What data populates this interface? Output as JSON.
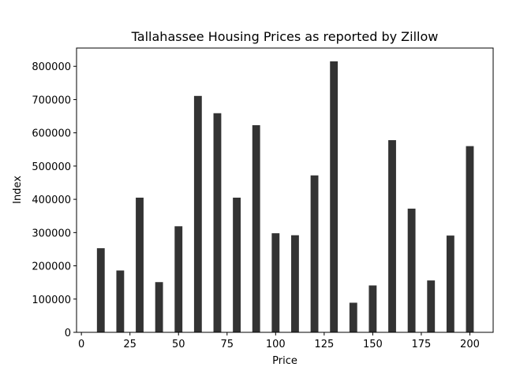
{
  "chart_data": {
    "type": "bar",
    "title": "Tallahassee Housing Prices as reported by Zillow",
    "xlabel": "Price",
    "ylabel": "Index",
    "x": [
      10,
      20,
      30,
      40,
      50,
      60,
      70,
      80,
      90,
      100,
      110,
      120,
      130,
      140,
      150,
      160,
      170,
      180,
      190,
      200
    ],
    "values": [
      253000,
      186000,
      405000,
      151000,
      319000,
      711000,
      659000,
      405000,
      623000,
      298000,
      292000,
      472000,
      815000,
      89000,
      141000,
      578000,
      372000,
      156000,
      291000,
      560000
    ],
    "xlim": [
      -2.5,
      212
    ],
    "ylim": [
      0,
      855000
    ],
    "xticks": [
      0,
      25,
      50,
      75,
      100,
      125,
      150,
      175,
      200
    ],
    "yticks": [
      0,
      100000,
      200000,
      300000,
      400000,
      500000,
      600000,
      700000,
      800000
    ],
    "bar_color": "#333333",
    "grid": false,
    "legend": "none"
  }
}
